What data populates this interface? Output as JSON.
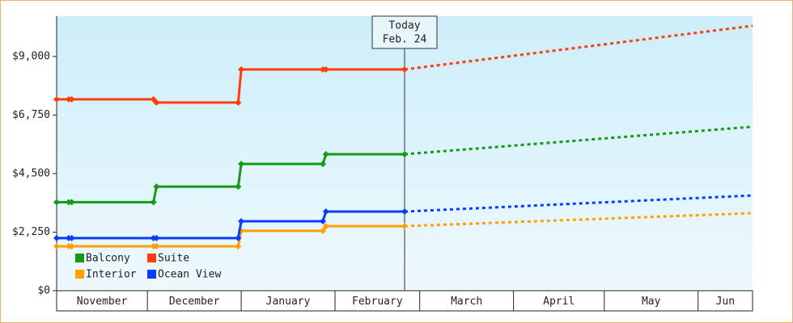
{
  "chart_data": {
    "type": "line",
    "x": [
      0,
      4,
      5,
      32,
      33,
      60,
      61,
      88,
      89,
      115,
      230
    ],
    "xlim": [
      0,
      230
    ],
    "xticks": [
      {
        "value": 0,
        "label": "November"
      },
      {
        "value": 30,
        "label": "December"
      },
      {
        "value": 61,
        "label": "January"
      },
      {
        "value": 92,
        "label": "February"
      },
      {
        "value": 120,
        "label": "March"
      },
      {
        "value": 151,
        "label": "April"
      },
      {
        "value": 181,
        "label": "May"
      },
      {
        "value": 212,
        "label": "Jun"
      }
    ],
    "ylim": [
      0,
      10550
    ],
    "yticks": [
      {
        "value": 0,
        "label": "$0"
      },
      {
        "value": 2250,
        "label": "$2,250"
      },
      {
        "value": 4500,
        "label": "$4,500"
      },
      {
        "value": 6750,
        "label": "$6,750"
      },
      {
        "value": 9000,
        "label": "$9,000"
      }
    ],
    "series": [
      {
        "name": "Balcony",
        "color": "#169a16",
        "values": [
          3400,
          3400,
          3400,
          3400,
          4000,
          4000,
          4870,
          4870,
          5245,
          5245,
          6300
        ]
      },
      {
        "name": "Suite",
        "color": "#ff3c0a",
        "values": [
          7355,
          7355,
          7355,
          7355,
          7230,
          7230,
          8503,
          8503,
          8503,
          8503,
          10180
        ]
      },
      {
        "name": "Interior",
        "color": "#ffa000",
        "values": [
          1705,
          1705,
          1705,
          1705,
          1705,
          1705,
          2300,
          2300,
          2480,
          2480,
          2980
        ]
      },
      {
        "name": "Ocean View",
        "color": "#0a3cff",
        "values": [
          2020,
          2020,
          2020,
          2020,
          2020,
          2020,
          2670,
          2670,
          3040,
          3040,
          3660
        ]
      }
    ],
    "annotation": {
      "x": 115,
      "lines": [
        "Today",
        "Feb. 24"
      ]
    },
    "legend": "lower-left"
  }
}
